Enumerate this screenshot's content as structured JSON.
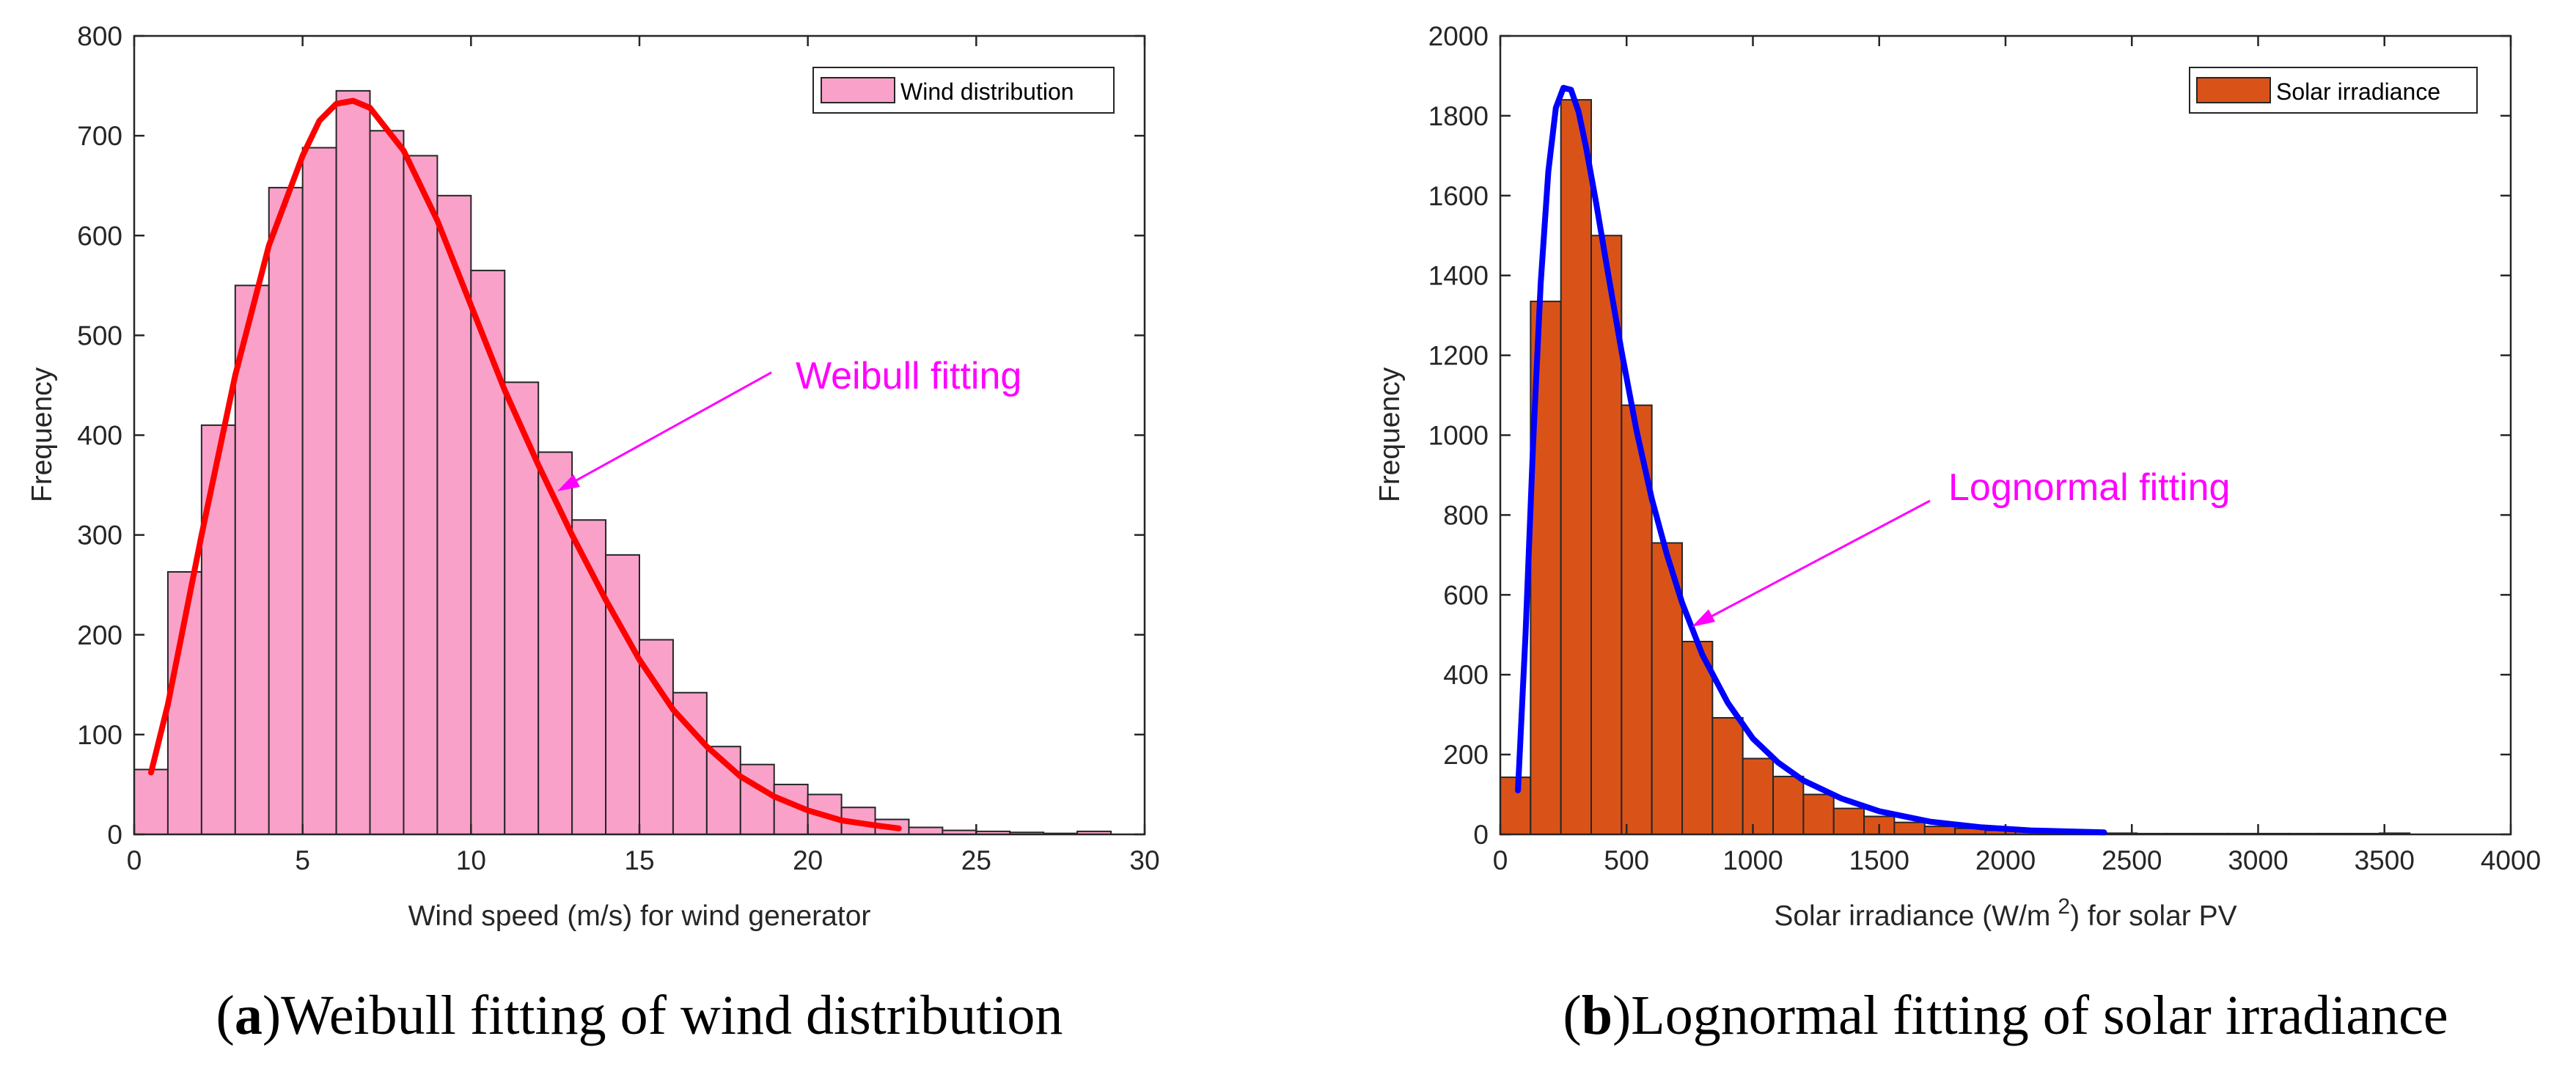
{
  "chart_data": [
    {
      "type": "bar",
      "subtype": "histogram-with-fit",
      "panel": "a",
      "xlabel": "Wind speed (m/s) for wind generator",
      "ylabel": "Frequency",
      "xlim": [
        0,
        30
      ],
      "ylim": [
        0,
        800
      ],
      "xticks": [
        "0",
        "5",
        "10",
        "15",
        "20",
        "25",
        "30"
      ],
      "yticks": [
        "0",
        "100",
        "200",
        "300",
        "400",
        "500",
        "600",
        "700",
        "800"
      ],
      "legend": {
        "label": "Wind distribution",
        "position": "top-right"
      },
      "annotation": "Weibull fitting",
      "caption": {
        "letter": "a",
        "text": ")Weibull fitting of wind distribution"
      },
      "bin_edges": [
        0,
        1,
        2,
        3,
        4,
        5,
        6,
        7,
        8,
        9,
        10,
        11,
        12,
        13,
        14,
        15,
        16,
        17,
        18,
        19,
        20,
        21,
        22,
        23,
        24,
        25,
        26,
        27,
        28,
        29
      ],
      "bin_width": 1,
      "values": [
        65,
        263,
        410,
        550,
        648,
        688,
        745,
        705,
        680,
        640,
        565,
        453,
        383,
        315,
        280,
        195,
        142,
        88,
        70,
        50,
        40,
        27,
        15,
        7,
        4,
        3,
        2,
        1,
        3
      ],
      "fit": {
        "name": "Weibull fitting",
        "x": [
          0.5,
          1,
          2,
          3,
          4,
          5,
          5.5,
          6,
          6.5,
          7,
          8,
          9,
          10,
          11,
          12,
          13,
          14,
          15,
          16,
          17,
          18,
          19,
          20,
          21,
          22,
          22.7
        ],
        "y": [
          62,
          130,
          300,
          460,
          590,
          680,
          715,
          732,
          735,
          728,
          685,
          615,
          530,
          445,
          370,
          300,
          235,
          175,
          125,
          88,
          58,
          38,
          24,
          14,
          9,
          6
        ]
      },
      "colors": {
        "bar": "#f9a1c9",
        "fit": "#ff0000",
        "annotation": "#ff00ff"
      }
    },
    {
      "type": "bar",
      "subtype": "histogram-with-fit",
      "panel": "b",
      "xlabel": "Solar irradiance (W/m",
      "xlabel_superscript": "2",
      "xlabel_suffix": ") for solar PV",
      "ylabel": "Frequency",
      "xlim": [
        0,
        4000
      ],
      "ylim": [
        0,
        2000
      ],
      "xticks": [
        "0",
        "500",
        "1000",
        "1500",
        "2000",
        "2500",
        "3000",
        "3500",
        "4000"
      ],
      "yticks": [
        "0",
        "200",
        "400",
        "600",
        "800",
        "1000",
        "1200",
        "1400",
        "1600",
        "1800",
        "2000"
      ],
      "legend": {
        "label": "Solar irradiance",
        "position": "top-right"
      },
      "annotation": "Lognormal fitting",
      "caption": {
        "letter": "b",
        "text": ")Lognormal fitting of solar irradiance"
      },
      "bin_edges": [
        0,
        120,
        240,
        360,
        480,
        600,
        720,
        840,
        960,
        1080,
        1200,
        1320,
        1440,
        1560,
        1680,
        1800,
        1920,
        2040,
        2160,
        2280,
        2400,
        2520,
        2640,
        2760,
        2880,
        3000,
        3120,
        3240,
        3360,
        3480
      ],
      "bin_width": 120,
      "values": [
        143,
        1335,
        1840,
        1500,
        1075,
        730,
        483,
        292,
        190,
        145,
        100,
        65,
        45,
        30,
        20,
        15,
        10,
        8,
        5,
        4,
        3,
        2,
        2,
        2,
        2,
        2,
        2,
        2,
        2,
        3
      ],
      "fit": {
        "name": "Lognormal fitting",
        "x": [
          70,
          100,
          130,
          160,
          190,
          220,
          250,
          280,
          310,
          340,
          380,
          420,
          480,
          540,
          600,
          660,
          720,
          800,
          900,
          1000,
          1100,
          1200,
          1350,
          1500,
          1700,
          1900,
          2100,
          2390
        ],
        "y": [
          110,
          500,
          980,
          1380,
          1660,
          1820,
          1870,
          1865,
          1810,
          1720,
          1580,
          1430,
          1210,
          1010,
          840,
          700,
          580,
          450,
          330,
          240,
          180,
          135,
          90,
          58,
          32,
          18,
          10,
          5
        ]
      },
      "colors": {
        "bar": "#d95319",
        "fit": "#0000ff",
        "annotation": "#ff00ff"
      }
    }
  ]
}
